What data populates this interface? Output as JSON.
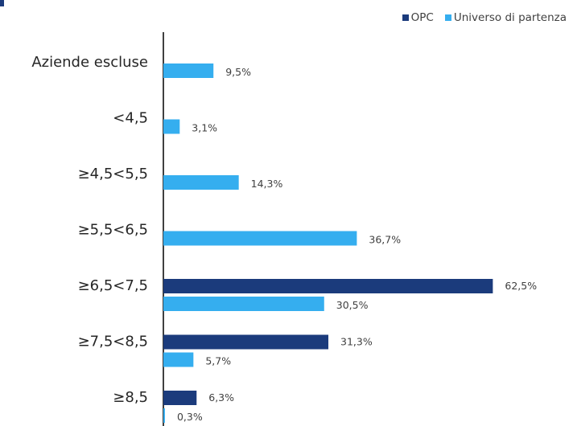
{
  "chart_data": {
    "type": "bar",
    "orientation": "horizontal",
    "categories": [
      "Aziende escluse",
      "<4,5",
      "≥4,5<5,5",
      "≥5,5<6,5",
      "≥6,5<7,5",
      "≥7,5<8,5",
      "≥8,5"
    ],
    "series": [
      {
        "name": "OPC",
        "color": "#1b3b7c",
        "values": [
          null,
          null,
          null,
          null,
          62.5,
          31.3,
          6.3
        ],
        "labels": [
          "",
          "",
          "",
          "",
          "62,5%",
          "31,3%",
          "6,3%"
        ]
      },
      {
        "name": "Universo di partenza",
        "color": "#35aeef",
        "values": [
          9.5,
          3.1,
          14.3,
          36.7,
          30.5,
          5.7,
          0.3
        ],
        "labels": [
          "9,5%",
          "3,1%",
          "14,3%",
          "36,7%",
          "30,5%",
          "5,7%",
          "0,3%"
        ]
      }
    ],
    "legend_position": "top-right",
    "grid": false,
    "xlim": [
      0,
      70
    ]
  }
}
